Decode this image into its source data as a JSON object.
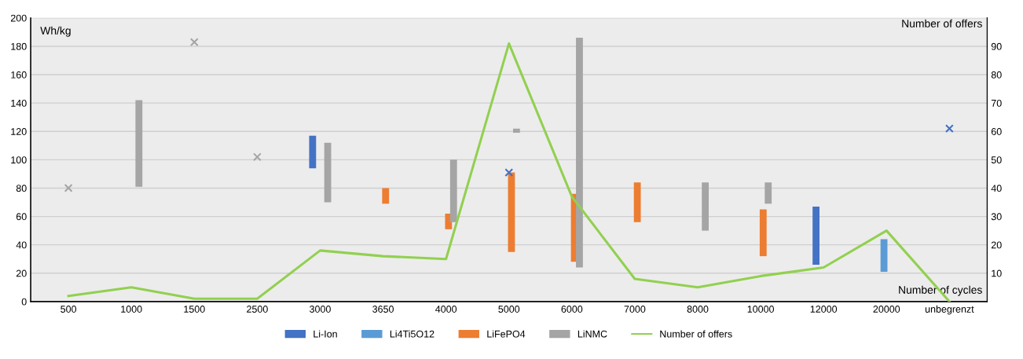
{
  "chart_data": {
    "type": "bar",
    "ylabel": "Wh/kg",
    "y2label": "Number of offers",
    "xlabel": "Number of cycles",
    "categories": [
      "500",
      "1000",
      "1500",
      "2500",
      "3000",
      "3650",
      "4000",
      "5000",
      "6000",
      "7000",
      "8000",
      "10000",
      "12000",
      "20000",
      "unbegrenzt"
    ],
    "series": [
      {
        "name": "Li-Ion",
        "color": "#4472c4",
        "base": [
          null,
          null,
          null,
          null,
          94,
          null,
          null,
          null,
          null,
          null,
          null,
          null,
          26,
          null,
          null
        ],
        "values": [
          null,
          null,
          null,
          null,
          23,
          null,
          null,
          null,
          null,
          null,
          null,
          null,
          41,
          null,
          null
        ]
      },
      {
        "name": "Li4Ti5O12",
        "color": "#5b9bd5",
        "base": [
          null,
          null,
          null,
          null,
          null,
          null,
          null,
          null,
          null,
          null,
          null,
          null,
          null,
          21,
          null
        ],
        "values": [
          null,
          null,
          null,
          null,
          null,
          null,
          null,
          null,
          null,
          null,
          null,
          null,
          null,
          23,
          null
        ]
      },
      {
        "name": "LiFePO4",
        "color": "#ed7d31",
        "base": [
          null,
          null,
          null,
          null,
          null,
          69,
          51,
          35,
          28,
          56,
          null,
          32,
          null,
          null,
          null
        ],
        "values": [
          null,
          null,
          null,
          null,
          null,
          11,
          11,
          56,
          48,
          28,
          null,
          33,
          null,
          null,
          null
        ]
      },
      {
        "name": "LiNMC",
        "color": "#a5a5a5",
        "base": [
          null,
          81,
          null,
          null,
          70,
          null,
          56,
          119,
          24,
          null,
          50,
          69,
          null,
          null,
          null
        ],
        "values": [
          null,
          61,
          null,
          null,
          42,
          null,
          44,
          3,
          162,
          null,
          34,
          15,
          null,
          null,
          null
        ]
      },
      {
        "type": "scatter",
        "color": "#a5a5a5",
        "marker": "cross",
        "values": [
          80,
          null,
          183,
          102,
          null,
          null,
          null,
          null,
          null,
          null,
          null,
          null,
          null,
          null,
          null
        ]
      },
      {
        "type": "scatter",
        "color": "#4472c4",
        "marker": "cross",
        "values": [
          null,
          null,
          null,
          null,
          null,
          null,
          null,
          91,
          null,
          null,
          null,
          null,
          null,
          null,
          122
        ]
      },
      {
        "type": "line",
        "name": "Number of offers",
        "color": "#92d050",
        "axis": "y2",
        "marker": "none",
        "values": [
          2,
          5,
          1,
          1,
          18,
          16,
          15,
          91,
          37,
          8,
          5,
          9,
          12,
          25,
          0
        ]
      }
    ],
    "ylim": [
      0,
      200
    ],
    "yticks": [
      0,
      20,
      40,
      60,
      80,
      100,
      120,
      140,
      160,
      180,
      200
    ],
    "y2lim": [
      0,
      100
    ],
    "y2ticks": [
      10,
      20,
      30,
      40,
      50,
      60,
      70,
      80,
      90
    ],
    "grid": "y",
    "legend": "bottom"
  }
}
